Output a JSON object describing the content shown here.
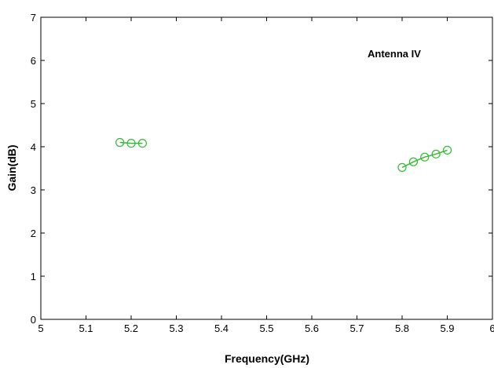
{
  "chart_data": {
    "type": "line",
    "xlabel": "Frequency(GHz)",
    "ylabel": "Gain(dB)",
    "xlim": [
      5,
      6
    ],
    "ylim": [
      0,
      7
    ],
    "xticks": [
      "5",
      "5.1",
      "5.2",
      "5.3",
      "5.4",
      "5.5",
      "5.6",
      "5.7",
      "5.8",
      "5.9",
      "6"
    ],
    "yticks": [
      "0",
      "1",
      "2",
      "3",
      "4",
      "5",
      "6",
      "7"
    ],
    "annotation": "Antenna IV",
    "grid": false,
    "series_color": "#33bb33",
    "series": [
      {
        "x": [
          5.175,
          5.2,
          5.225
        ],
        "y": [
          4.1,
          4.08,
          4.08
        ]
      },
      {
        "x": [
          5.8,
          5.825,
          5.85,
          5.875,
          5.9
        ],
        "y": [
          3.52,
          3.65,
          3.76,
          3.83,
          3.92
        ]
      }
    ]
  }
}
